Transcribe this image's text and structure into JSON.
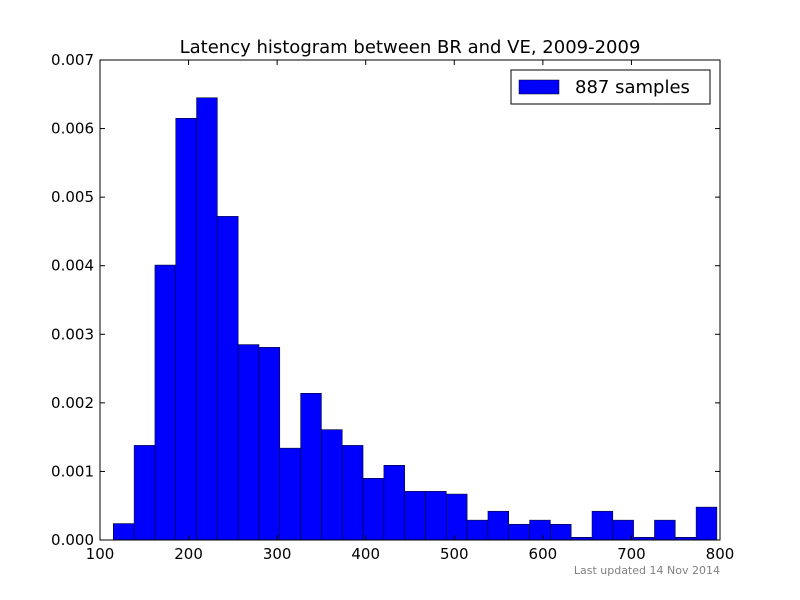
{
  "chart_data": {
    "type": "bar",
    "title": "Latency histogram between BR and VE, 2009-2009",
    "xlabel": "",
    "ylabel": "",
    "xlim": [
      100,
      800
    ],
    "ylim": [
      0,
      0.007
    ],
    "x_ticks": [
      "100",
      "200",
      "300",
      "400",
      "500",
      "600",
      "700",
      "800"
    ],
    "y_ticks": [
      "0.000",
      "0.001",
      "0.002",
      "0.003",
      "0.004",
      "0.005",
      "0.006",
      "0.007"
    ],
    "bin_start": 115,
    "bin_width": 23.5,
    "values": [
      0.00024,
      0.00138,
      0.00401,
      0.00615,
      0.00645,
      0.00472,
      0.00285,
      0.00281,
      0.00134,
      0.00214,
      0.00161,
      0.00138,
      0.0009,
      0.00109,
      0.00071,
      0.00071,
      0.00067,
      0.00029,
      0.00042,
      0.00023,
      0.00029,
      0.00023,
      4e-05,
      0.00042,
      0.00029,
      4e-05,
      0.00029,
      4e-05,
      0.00048
    ],
    "series_name": "887 samples",
    "bar_color": "#0000ff",
    "grid": false,
    "legend_position": "top-right"
  },
  "footnote": "Last updated 14 Nov 2014"
}
